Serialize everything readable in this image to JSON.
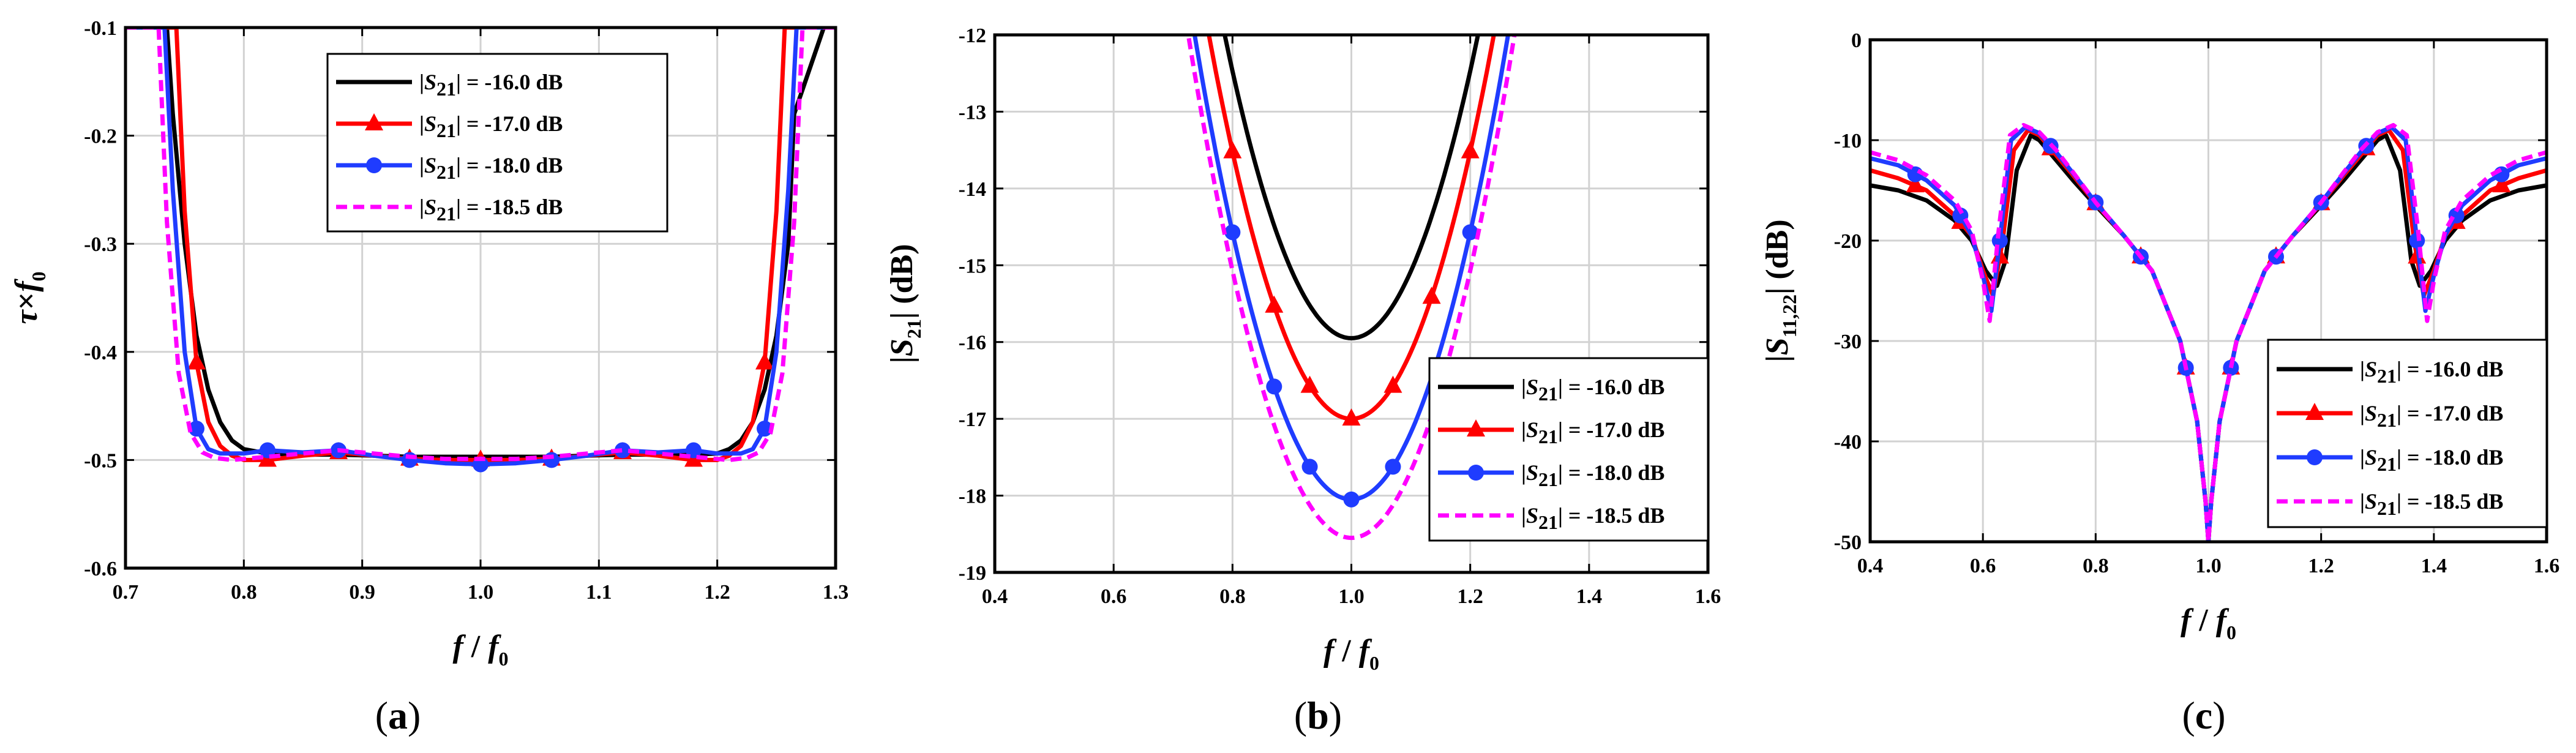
{
  "colors": {
    "s16": "#000000",
    "s17": "#ff0000",
    "s18": "#1f3cff",
    "s185": "#ff00ff",
    "grid": "#d2d2d2"
  },
  "chart_data": [
    {
      "id": "a",
      "type": "line",
      "panel_label": "a",
      "xlabel": "f / f0",
      "ylabel": "τ×f0",
      "xlim": [
        0.7,
        1.3
      ],
      "ylim": [
        -0.6,
        -0.1
      ],
      "xticks": [
        0.7,
        0.8,
        0.9,
        1.0,
        1.1,
        1.2,
        1.3
      ],
      "yticks": [
        -0.6,
        -0.5,
        -0.4,
        -0.3,
        -0.2,
        -0.1
      ],
      "xtick_labels": [
        "0.7",
        "0.8",
        "0.9",
        "1.0",
        "1.1",
        "1.2",
        "1.3"
      ],
      "ytick_labels": [
        "-0.6",
        "-0.5",
        "-0.4",
        "-0.3",
        "-0.2",
        "-0.1"
      ],
      "legend_position": "top-right",
      "series": [
        {
          "name": "|S21| = -16.0 dB",
          "color": "#000000",
          "marker": "none",
          "x": [
            0.71,
            0.735,
            0.74,
            0.75,
            0.76,
            0.77,
            0.78,
            0.79,
            0.8,
            0.82,
            0.85,
            0.88,
            0.91,
            0.94,
            0.97,
            1.0,
            1.03,
            1.06,
            1.09,
            1.12,
            1.15,
            1.18,
            1.2,
            1.21,
            1.22,
            1.23,
            1.24,
            1.25,
            1.26,
            1.265,
            1.29
          ],
          "y": [
            -0.1,
            -0.1,
            -0.18,
            -0.3,
            -0.385,
            -0.435,
            -0.465,
            -0.482,
            -0.49,
            -0.494,
            -0.495,
            -0.495,
            -0.496,
            -0.497,
            -0.497,
            -0.497,
            -0.497,
            -0.497,
            -0.496,
            -0.495,
            -0.495,
            -0.495,
            -0.494,
            -0.49,
            -0.482,
            -0.465,
            -0.435,
            -0.385,
            -0.3,
            -0.18,
            -0.1
          ]
        },
        {
          "name": "|S21| = -17.0 dB",
          "color": "#ff0000",
          "marker": "triangle",
          "x": [
            0.7,
            0.743,
            0.75,
            0.76,
            0.77,
            0.78,
            0.79,
            0.8,
            0.82,
            0.85,
            0.88,
            0.91,
            0.94,
            0.97,
            1.0,
            1.03,
            1.06,
            1.09,
            1.12,
            1.15,
            1.18,
            1.2,
            1.21,
            1.22,
            1.23,
            1.24,
            1.25,
            1.257,
            1.3
          ],
          "y": [
            -0.1,
            -0.1,
            -0.27,
            -0.41,
            -0.465,
            -0.487,
            -0.496,
            -0.5,
            -0.5,
            -0.496,
            -0.493,
            -0.496,
            -0.499,
            -0.5,
            -0.5,
            -0.5,
            -0.499,
            -0.496,
            -0.493,
            -0.496,
            -0.5,
            -0.5,
            -0.496,
            -0.487,
            -0.465,
            -0.41,
            -0.27,
            -0.1,
            -0.1
          ],
          "markers_x": [
            0.76,
            0.82,
            0.88,
            0.94,
            1.0,
            1.06,
            1.12,
            1.18,
            1.24
          ]
        },
        {
          "name": "|S21| = -18.0 dB",
          "color": "#1f3cff",
          "marker": "circle",
          "x": [
            0.7,
            0.733,
            0.74,
            0.75,
            0.76,
            0.77,
            0.78,
            0.8,
            0.82,
            0.85,
            0.88,
            0.91,
            0.94,
            0.97,
            1.0,
            1.03,
            1.06,
            1.09,
            1.12,
            1.15,
            1.18,
            1.2,
            1.22,
            1.23,
            1.24,
            1.25,
            1.26,
            1.267,
            1.3
          ],
          "y": [
            -0.1,
            -0.1,
            -0.25,
            -0.4,
            -0.471,
            -0.49,
            -0.494,
            -0.494,
            -0.491,
            -0.493,
            -0.491,
            -0.496,
            -0.5,
            -0.503,
            -0.504,
            -0.503,
            -0.5,
            -0.496,
            -0.491,
            -0.493,
            -0.491,
            -0.494,
            -0.494,
            -0.49,
            -0.471,
            -0.4,
            -0.25,
            -0.1,
            -0.1
          ],
          "markers_x": [
            0.76,
            0.82,
            0.88,
            0.94,
            1.0,
            1.06,
            1.12,
            1.18,
            1.24
          ]
        },
        {
          "name": "|S21| = -18.5 dB",
          "color": "#ff00ff",
          "marker": "dashed",
          "x": [
            0.7,
            0.728,
            0.735,
            0.745,
            0.755,
            0.765,
            0.775,
            0.79,
            0.82,
            0.85,
            0.88,
            0.91,
            0.94,
            0.97,
            1.0,
            1.03,
            1.06,
            1.09,
            1.12,
            1.15,
            1.18,
            1.21,
            1.225,
            1.235,
            1.245,
            1.255,
            1.265,
            1.272,
            1.3
          ],
          "y": [
            -0.1,
            -0.1,
            -0.28,
            -0.42,
            -0.475,
            -0.493,
            -0.498,
            -0.5,
            -0.497,
            -0.494,
            -0.491,
            -0.494,
            -0.497,
            -0.499,
            -0.499,
            -0.499,
            -0.497,
            -0.494,
            -0.491,
            -0.494,
            -0.497,
            -0.5,
            -0.498,
            -0.493,
            -0.475,
            -0.42,
            -0.28,
            -0.1,
            -0.1
          ]
        }
      ]
    },
    {
      "id": "b",
      "type": "line",
      "panel_label": "b",
      "xlabel": "f / f0",
      "ylabel": "|S21| (dB)",
      "xlim": [
        0.4,
        1.6
      ],
      "ylim": [
        -19,
        -12
      ],
      "xticks": [
        0.4,
        0.6,
        0.8,
        1.0,
        1.2,
        1.4,
        1.6
      ],
      "yticks": [
        -19,
        -18,
        -17,
        -16,
        -15,
        -14,
        -13,
        -12
      ],
      "xtick_labels": [
        "0.4",
        "0.6",
        "0.8",
        "1.0",
        "1.2",
        "1.4",
        "1.6"
      ],
      "ytick_labels": [
        "-19",
        "-18",
        "-17",
        "-16",
        "-15",
        "-14",
        "-13",
        "-12"
      ],
      "legend_position": "bottom-right",
      "series": [
        {
          "name": "|S21| = -16.0 dB",
          "color": "#000000",
          "marker": "none",
          "min": -15.95,
          "k": 87,
          "xmin": 0.7,
          "xmax": 1.3
        },
        {
          "name": "|S21| = -17.0 dB",
          "color": "#ff0000",
          "marker": "triangle",
          "min": -17.0,
          "k": 87,
          "xmin": 0.7,
          "xmax": 1.3,
          "markers_x": [
            0.8,
            0.87,
            0.93,
            1.0,
            1.07,
            1.135,
            1.2
          ]
        },
        {
          "name": "|S21| = -18.0 dB",
          "color": "#1f3cff",
          "marker": "circle",
          "min": -18.05,
          "k": 87,
          "xmin": 0.7,
          "xmax": 1.3,
          "markers_x": [
            0.8,
            0.87,
            0.93,
            1.0,
            1.07,
            1.2
          ]
        },
        {
          "name": "|S21| = -18.5 dB",
          "color": "#ff00ff",
          "marker": "dashed",
          "min": -18.55,
          "k": 87,
          "xmin": 0.7,
          "xmax": 1.3
        }
      ]
    },
    {
      "id": "c",
      "type": "line",
      "panel_label": "c",
      "xlabel": "f / f0",
      "ylabel": "|S11,22| (dB)",
      "xlim": [
        0.4,
        1.6
      ],
      "ylim": [
        -50,
        0
      ],
      "xticks": [
        0.4,
        0.6,
        0.8,
        1.0,
        1.2,
        1.4,
        1.6
      ],
      "yticks": [
        -50,
        -40,
        -30,
        -20,
        -10,
        0
      ],
      "xtick_labels": [
        "0.4",
        "0.6",
        "0.8",
        "1.0",
        "1.2",
        "1.4",
        "1.6"
      ],
      "ytick_labels": [
        "-50",
        "-40",
        "-30",
        "-20",
        "-10",
        "0"
      ],
      "legend_position": "bottom-right",
      "series": [
        {
          "name": "|S21| = -16.0 dB",
          "color": "#000000",
          "marker": "none",
          "x": [
            0.4,
            0.45,
            0.5,
            0.55,
            0.58,
            0.605,
            0.625,
            0.64,
            0.66,
            0.685,
            0.7,
            0.73,
            0.76,
            0.8,
            0.85,
            0.9,
            0.95,
            0.98,
            0.995,
            1.0,
            1.005,
            1.02,
            1.05,
            1.1,
            1.15,
            1.2,
            1.24,
            1.27,
            1.3,
            1.315,
            1.34,
            1.36,
            1.375,
            1.395,
            1.42,
            1.45,
            1.5,
            1.55,
            1.6
          ],
          "y": [
            -14.5,
            -15.0,
            -16.0,
            -18.0,
            -20.0,
            -23.0,
            -24.5,
            -22.0,
            -13.0,
            -9.5,
            -10.0,
            -12.0,
            -14.0,
            -16.5,
            -19.5,
            -23.0,
            -30.0,
            -38.0,
            -46.0,
            -50.0,
            -46.0,
            -38.0,
            -30.0,
            -23.0,
            -19.5,
            -16.5,
            -14.0,
            -12.0,
            -10.0,
            -9.5,
            -13.0,
            -22.0,
            -24.5,
            -23.0,
            -20.0,
            -18.0,
            -16.0,
            -15.0,
            -14.5
          ]
        },
        {
          "name": "|S21| = -17.0 dB",
          "color": "#ff0000",
          "marker": "triangle",
          "x": [
            0.4,
            0.45,
            0.5,
            0.55,
            0.58,
            0.6,
            0.618,
            0.635,
            0.655,
            0.68,
            0.7,
            0.73,
            0.76,
            0.8,
            0.85,
            0.9,
            0.95,
            0.98,
            0.995,
            1.0,
            1.005,
            1.02,
            1.05,
            1.1,
            1.15,
            1.2,
            1.24,
            1.27,
            1.3,
            1.32,
            1.345,
            1.365,
            1.382,
            1.4,
            1.42,
            1.45,
            1.5,
            1.55,
            1.6
          ],
          "y": [
            -13.0,
            -13.8,
            -15.0,
            -17.5,
            -19.5,
            -23.0,
            -25.5,
            -20.0,
            -11.0,
            -9.0,
            -9.5,
            -11.5,
            -13.5,
            -16.3,
            -19.5,
            -23.0,
            -30.0,
            -38.0,
            -46.0,
            -50.0,
            -46.0,
            -38.0,
            -30.0,
            -23.0,
            -19.5,
            -16.3,
            -13.5,
            -11.5,
            -9.5,
            -9.0,
            -11.0,
            -20.0,
            -25.5,
            -23.0,
            -19.5,
            -17.5,
            -15.0,
            -13.8,
            -13.0
          ],
          "markers_x": [
            0.48,
            0.56,
            0.63,
            0.72,
            0.8,
            0.88,
            0.96,
            1.04,
            1.12,
            1.2,
            1.28,
            1.37,
            1.44,
            1.52
          ]
        },
        {
          "name": "|S21| = -18.0 dB",
          "color": "#1f3cff",
          "marker": "circle",
          "x": [
            0.4,
            0.45,
            0.5,
            0.55,
            0.58,
            0.6,
            0.615,
            0.63,
            0.65,
            0.675,
            0.7,
            0.73,
            0.76,
            0.8,
            0.85,
            0.9,
            0.95,
            0.98,
            0.995,
            1.0,
            1.005,
            1.02,
            1.05,
            1.1,
            1.15,
            1.2,
            1.24,
            1.27,
            1.3,
            1.325,
            1.35,
            1.37,
            1.385,
            1.4,
            1.42,
            1.45,
            1.5,
            1.55,
            1.6
          ],
          "y": [
            -11.8,
            -12.5,
            -14.0,
            -16.5,
            -19.5,
            -23.5,
            -27.0,
            -20.0,
            -10.0,
            -8.7,
            -9.3,
            -11.2,
            -13.3,
            -16.2,
            -19.5,
            -23.0,
            -30.0,
            -38.0,
            -46.0,
            -50.0,
            -46.0,
            -38.0,
            -30.0,
            -23.0,
            -19.5,
            -16.2,
            -13.3,
            -11.2,
            -9.3,
            -8.7,
            -10.0,
            -20.0,
            -27.0,
            -23.5,
            -19.5,
            -16.5,
            -14.0,
            -12.5,
            -11.8
          ],
          "markers_x": [
            0.48,
            0.56,
            0.63,
            0.72,
            0.8,
            0.88,
            0.96,
            1.04,
            1.12,
            1.2,
            1.28,
            1.37,
            1.44,
            1.52
          ]
        },
        {
          "name": "|S21| = -18.5 dB",
          "color": "#ff00ff",
          "marker": "dashed",
          "x": [
            0.4,
            0.45,
            0.5,
            0.55,
            0.58,
            0.6,
            0.612,
            0.628,
            0.648,
            0.672,
            0.7,
            0.73,
            0.76,
            0.8,
            0.85,
            0.9,
            0.95,
            0.98,
            0.995,
            1.0,
            1.005,
            1.02,
            1.05,
            1.1,
            1.15,
            1.2,
            1.24,
            1.27,
            1.3,
            1.328,
            1.352,
            1.372,
            1.388,
            1.4,
            1.42,
            1.45,
            1.5,
            1.55,
            1.6
          ],
          "y": [
            -11.2,
            -12.0,
            -13.5,
            -16.0,
            -19.0,
            -24.0,
            -28.0,
            -19.0,
            -9.5,
            -8.5,
            -9.2,
            -11.0,
            -13.2,
            -16.2,
            -19.5,
            -23.0,
            -30.0,
            -38.0,
            -46.0,
            -50.0,
            -46.0,
            -38.0,
            -30.0,
            -23.0,
            -19.5,
            -16.2,
            -13.2,
            -11.0,
            -9.2,
            -8.5,
            -9.5,
            -19.0,
            -28.0,
            -24.0,
            -19.0,
            -16.0,
            -13.5,
            -12.0,
            -11.2
          ]
        }
      ]
    }
  ]
}
